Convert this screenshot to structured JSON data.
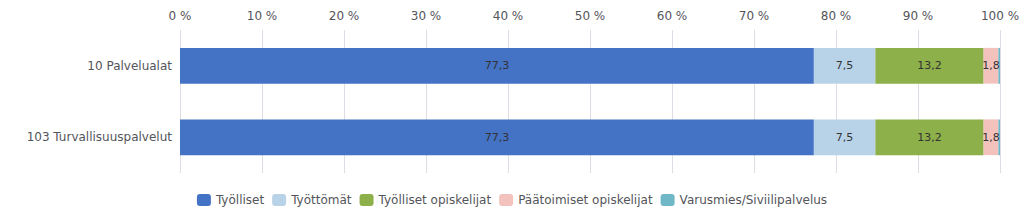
{
  "chart_data": {
    "type": "bar",
    "orientation": "horizontal",
    "stacked": true,
    "data_labels": true,
    "grid": true,
    "legend": "bottom",
    "categories": [
      "103 Turvallisuuspalvelut",
      "10 Palvelualat"
    ],
    "series": [
      {
        "name": "Työlliset",
        "color": "#4472C4",
        "values": [
          77.3,
          77.3
        ],
        "value_labels": [
          "77,3",
          "77,3"
        ]
      },
      {
        "name": "Työttömät",
        "color": "#B8D3E8",
        "values": [
          7.5,
          7.5
        ],
        "value_labels": [
          "7,5",
          "7,5"
        ]
      },
      {
        "name": "Työlliset opiskelijat",
        "color": "#8DB04A",
        "values": [
          13.2,
          13.2
        ],
        "value_labels": [
          "13,2",
          "13,2"
        ]
      },
      {
        "name": "Päätoimiset opiskelijat",
        "color": "#F4C2BC",
        "values": [
          1.8,
          1.8
        ],
        "value_labels": [
          "1,8",
          "1,8"
        ]
      },
      {
        "name": "Varusmies/Siviilipalvelus",
        "color": "#70B8C8",
        "values": [
          0.2,
          0.2
        ],
        "value_labels": [
          null,
          null
        ]
      }
    ],
    "xlim": [
      0,
      100
    ],
    "xticks": [
      {
        "value": 0,
        "label": "0 %"
      },
      {
        "value": 10,
        "label": "10 %"
      },
      {
        "value": 20,
        "label": "20 %"
      },
      {
        "value": 30,
        "label": "30 %"
      },
      {
        "value": 40,
        "label": "40 %"
      },
      {
        "value": 50,
        "label": "50 %"
      },
      {
        "value": 60,
        "label": "60 %"
      },
      {
        "value": 70,
        "label": "70 %"
      },
      {
        "value": 80,
        "label": "80 %"
      },
      {
        "value": 90,
        "label": "90 %"
      },
      {
        "value": 100,
        "label": "100 %"
      }
    ]
  }
}
